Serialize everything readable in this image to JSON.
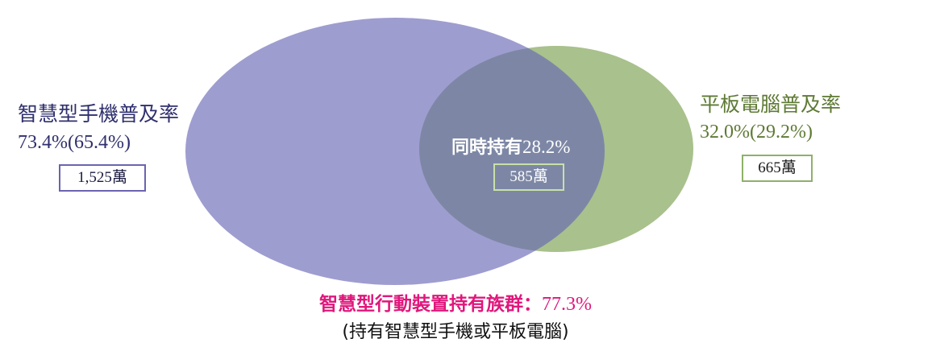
{
  "smartphone": {
    "label": "智慧型手機普及率",
    "rate": "73.4%(65.4%)",
    "count": "1,525萬"
  },
  "tablet": {
    "label": "平板電腦普及率",
    "rate": "32.0%(29.2%)",
    "count": "665萬"
  },
  "both": {
    "label": "同時持有",
    "rate": "28.2%",
    "count": "585萬"
  },
  "total": {
    "label": "智慧型行動裝置持有族群：",
    "rate": "77.3%",
    "note": "(持有智慧型手機或平板電腦)"
  }
}
